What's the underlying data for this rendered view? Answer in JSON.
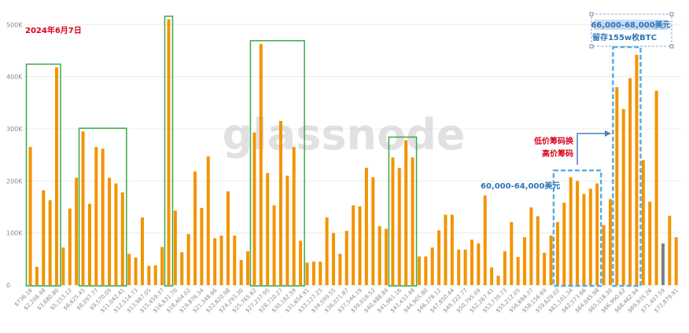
{
  "chart_data": {
    "type": "bar",
    "title": "",
    "xlabel": "",
    "ylabel": "",
    "ylim": [
      0,
      520000
    ],
    "yticks": [
      0,
      100000,
      200000,
      300000,
      400000,
      500000
    ],
    "ytick_labels": [
      "0",
      "100K",
      "200K",
      "300K",
      "400K",
      "500K"
    ],
    "grid": true,
    "bar_color": "#f29400",
    "current_bar_color": "#7f7f7f",
    "tick_labels": [
      "$736.16",
      "$2,208.48",
      "$3,680.80",
      "$5,153.12",
      "$6,625.45",
      "$8,097.77",
      "$9,570.09",
      "$11,042.41",
      "$12,514.73",
      "$13,987.05",
      "$15,459.37",
      "$16,931.70",
      "$18,404.02",
      "$19,876.34",
      "$21,348.66",
      "$22,820.98",
      "$24,293.30",
      "$25,765.62",
      "$27,237.95",
      "$28,710.27",
      "$30,182.59",
      "$31,654.91",
      "$33,127.23",
      "$34,599.55",
      "$36,071.87",
      "$37,544.19",
      "$39,016.52",
      "$40,488.84",
      "$41,961.16",
      "$43,433.48",
      "$44,905.80",
      "$46,378.12",
      "$47,850.44",
      "$49,322.77",
      "$50,795.09",
      "$52,267.41",
      "$53,739.73",
      "$55,212.05",
      "$56,684.37",
      "$58,156.69",
      "$59,629.02",
      "$61,101.34",
      "$62,573.66",
      "$64,045.98",
      "$65,518.30",
      "$66,990.62",
      "$68,462.94",
      "$69,935.26",
      "$71,407.59",
      "$72,879.91"
    ],
    "values": [
      265000,
      35000,
      182000,
      163000,
      418000,
      72000,
      147000,
      206000,
      295000,
      156000,
      265000,
      262000,
      206000,
      195000,
      178000,
      60000,
      53000,
      130000,
      37000,
      38000,
      73000,
      510000,
      143000,
      63000,
      98000,
      218000,
      148000,
      247000,
      90000,
      95000,
      180000,
      95000,
      48000,
      65000,
      293000,
      463000,
      215000,
      153000,
      315000,
      210000,
      265000,
      85000,
      43000,
      45000,
      45000,
      130000,
      100000,
      60000,
      104000,
      153000,
      151000,
      225000,
      207000,
      113000,
      108000,
      245000,
      225000,
      278000,
      245000,
      55000,
      55000,
      72000,
      105000,
      135000,
      135000,
      68000,
      68000,
      87000,
      80000,
      172000,
      34000,
      18000,
      65000,
      121000,
      54000,
      92000,
      149000,
      132000,
      62000,
      95000,
      121000,
      158000,
      207000,
      200000,
      175000,
      185000,
      195000,
      115000,
      165000,
      380000,
      338000,
      397000,
      442000,
      240000,
      160000,
      373000,
      80000,
      133000,
      92000
    ],
    "current_index": 96,
    "annotations": {
      "date": "2024年6月7日",
      "range_top": "66,000-68,000美元",
      "retained": "留存155w枚BTC",
      "range_mid": "60,000-64,000美元",
      "low_cost": "低价筹码换",
      "high_cost": "高价筹码"
    },
    "watermark": "glassnode"
  },
  "colors": {
    "green_box": "#3aa845",
    "blue_dash": "#5aaee0",
    "arrow": "#4f7fc0",
    "grid": "#ececec"
  }
}
